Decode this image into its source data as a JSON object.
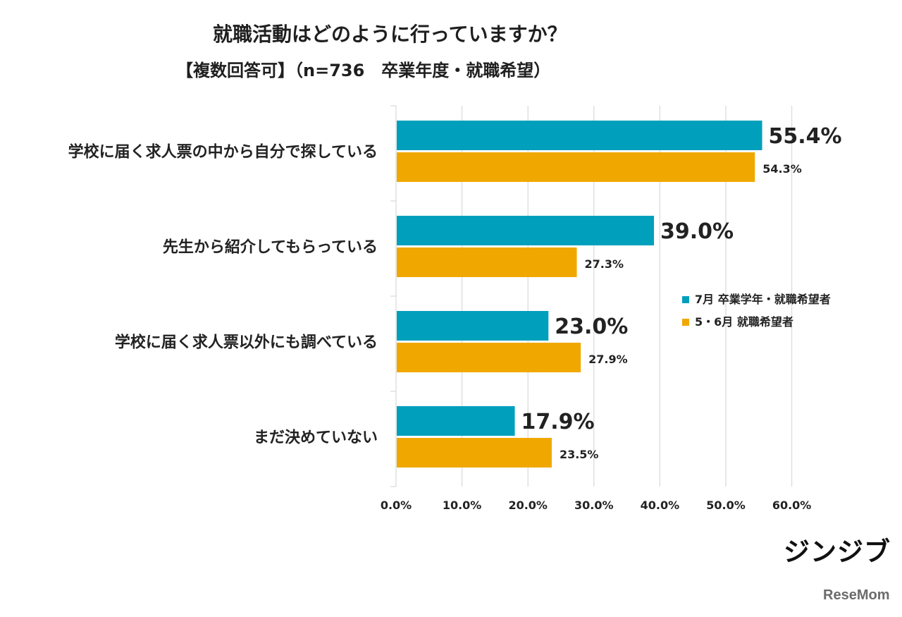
{
  "chart_data": {
    "type": "bar",
    "title": "就職活動はどのように行っていますか？",
    "subtitle": "【複数回答可】（n=736　卒業年度・就職希望）",
    "categories": [
      "学校に届く求人票の中から自分で探している",
      "先生から紹介してもらっている",
      "学校に届く求人票以外にも調べている",
      "まだ決めていない"
    ],
    "series": [
      {
        "name": "7月 卒業学年・就職希望者",
        "values": [
          55.4,
          39.0,
          23.0,
          17.9
        ],
        "labels": [
          "55.4%",
          "39.0%",
          "23.0%",
          "17.9%"
        ],
        "color": "#00a0bc"
      },
      {
        "name": "5・6月 就職希望者",
        "values": [
          54.3,
          27.3,
          27.9,
          23.5
        ],
        "labels": [
          "54.3%",
          "27.3%",
          "27.9%",
          "23.5%"
        ],
        "color": "#f0a800"
      }
    ],
    "xlim": [
      0,
      60
    ],
    "x_ticks": [
      0,
      10,
      20,
      30,
      40,
      50,
      60
    ],
    "x_tick_labels": [
      "0.0%",
      "10.0%",
      "20.0%",
      "30.0%",
      "40.0%",
      "50.0%",
      "60.0%"
    ],
    "grid": true,
    "legend_position": "right",
    "orientation": "horizontal"
  },
  "branding": {
    "logo_text": "ジンジブ",
    "source_text": "ReseMom"
  },
  "colors": {
    "gridline": "#d9d9d9",
    "axis": "#d9d9d9",
    "text": "#222222"
  }
}
